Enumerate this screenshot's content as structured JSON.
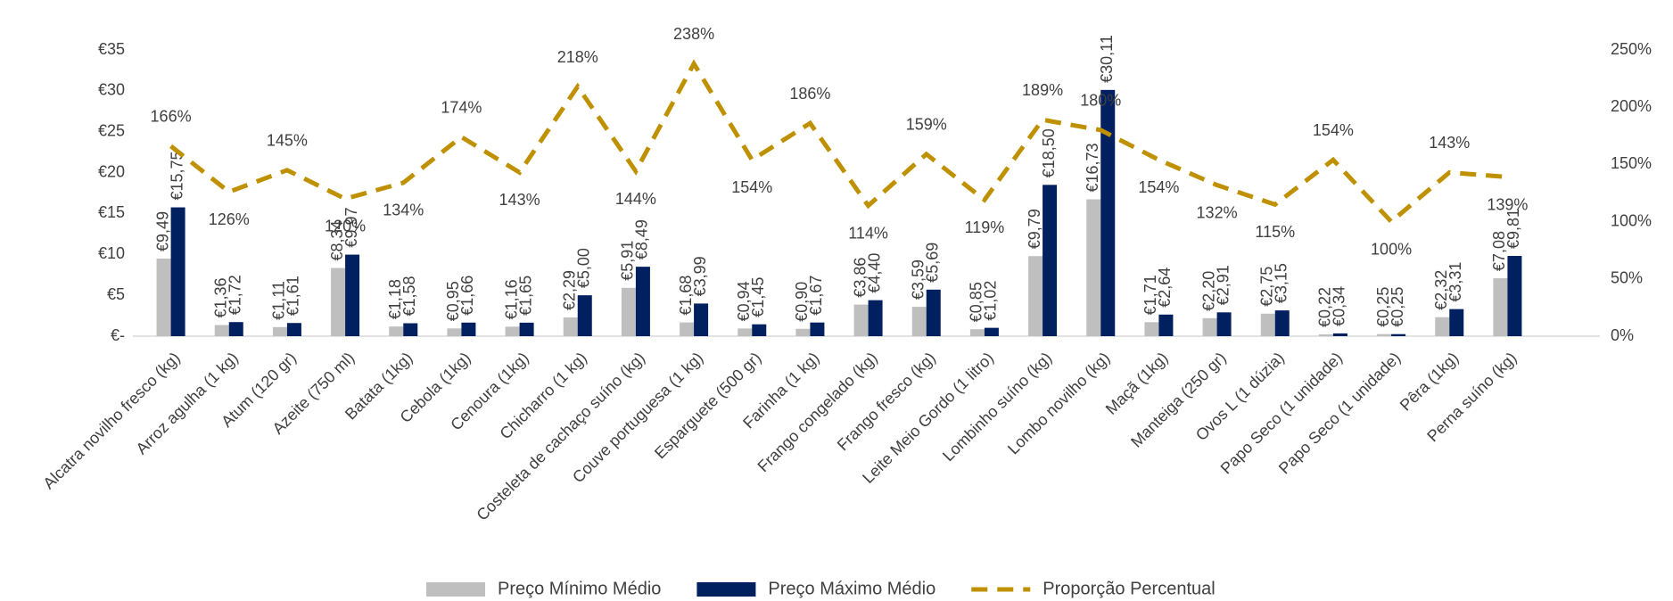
{
  "chart_data": {
    "type": "bar",
    "categories": [
      "Alcatra novilho fresco (kg)",
      "Arroz agulha (1 kg)",
      "Atum (120 gr)",
      "Azeite (750 ml)",
      "Batata (1kg)",
      "Cebola (1kg)",
      "Cenoura (1kg)",
      "Chicharro (1 kg)",
      "Costeleta de cachaço suíno (kg)",
      "Couve portuguesa (1 kg)",
      "Esparguete (500 gr)",
      "Farinha (1 kg)",
      "Frango congelado (kg)",
      "Frango fresco (kg)",
      "Leite Meio Gordo (1 litro)",
      "Lombinho suíno (kg)",
      "Lombo novilho (kg)",
      "Maçã (1kg)",
      "Manteiga (250 gr)",
      "Ovos L  (1 dúzia)",
      "Papo Seco (1 unidade)",
      "Papo Seco (1 unidade)",
      "Pêra (1kg)",
      "Perna suíno (kg)"
    ],
    "series": [
      {
        "name": "Preço Mínimo Médio",
        "color": "#bfbfbf",
        "type": "bar",
        "values": [
          9.49,
          1.36,
          1.11,
          8.34,
          1.18,
          0.95,
          1.16,
          2.29,
          5.91,
          1.68,
          0.94,
          0.9,
          3.86,
          3.59,
          0.85,
          9.79,
          16.73,
          1.71,
          2.2,
          2.75,
          0.22,
          0.25,
          2.32,
          7.08
        ],
        "value_labels": [
          "€9,49",
          "€1,36",
          "€1,11",
          "€8,34",
          "€1,18",
          "€0,95",
          "€1,16",
          "€2,29",
          "€5,91",
          "€1,68",
          "€0,94",
          "€0,90",
          "€3,86",
          "€3,59",
          "€0,85",
          "€9,79",
          "€16,73",
          "€1,71",
          "€2,20",
          "€2,75",
          "€0,22",
          "€0,25",
          "€2,32",
          "€7,08"
        ]
      },
      {
        "name": "Preço Máximo Médio",
        "color": "#002060",
        "type": "bar",
        "values": [
          15.75,
          1.72,
          1.61,
          9.97,
          1.58,
          1.66,
          1.65,
          5.0,
          8.49,
          3.99,
          1.45,
          1.67,
          4.4,
          5.69,
          1.02,
          18.5,
          30.11,
          2.64,
          2.91,
          3.15,
          0.34,
          0.25,
          3.31,
          9.81
        ],
        "value_labels": [
          "€15,75",
          "€1,72",
          "€1,61",
          "€9,97",
          "€1,58",
          "€1,66",
          "€1,65",
          "€5,00",
          "€8,49",
          "€3,99",
          "€1,45",
          "€1,67",
          "€4,40",
          "€5,69",
          "€1,02",
          "€18,50",
          "€30,11",
          "€2,64",
          "€2,91",
          "€3,15",
          "€0,34",
          "€0,25",
          "€3,31",
          "€9,81"
        ]
      },
      {
        "name": "Proporção Percentual",
        "color": "#bf9000",
        "type": "line",
        "axis": "y2",
        "values": [
          166,
          126,
          145,
          120,
          134,
          174,
          143,
          218,
          144,
          238,
          154,
          186,
          114,
          159,
          119,
          189,
          180,
          154,
          132,
          115,
          154,
          100,
          143,
          139
        ],
        "value_labels": [
          "166%",
          "126%",
          "145%",
          "120%",
          "134%",
          "174%",
          "143%",
          "218%",
          "144%",
          "238%",
          "154%",
          "186%",
          "114%",
          "159%",
          "119%",
          "189%",
          "180%",
          "154%",
          "132%",
          "115%",
          "154%",
          "100%",
          "143%",
          "139%"
        ]
      }
    ],
    "ylim": [
      0,
      35
    ],
    "yticks": [
      {
        "value": 0,
        "label": "€-"
      },
      {
        "value": 5,
        "label": "€5"
      },
      {
        "value": 10,
        "label": "€10"
      },
      {
        "value": 15,
        "label": "€15"
      },
      {
        "value": 20,
        "label": "€20"
      },
      {
        "value": 25,
        "label": "€25"
      },
      {
        "value": 30,
        "label": "€30"
      },
      {
        "value": 35,
        "label": "€35"
      }
    ],
    "y2lim": [
      0,
      250
    ],
    "y2ticks": [
      {
        "value": 0,
        "label": "0%"
      },
      {
        "value": 50,
        "label": "50%"
      },
      {
        "value": 100,
        "label": "100%"
      },
      {
        "value": 150,
        "label": "150%"
      },
      {
        "value": 200,
        "label": "200%"
      },
      {
        "value": 250,
        "label": "250%"
      }
    ],
    "legend": "bottom"
  }
}
